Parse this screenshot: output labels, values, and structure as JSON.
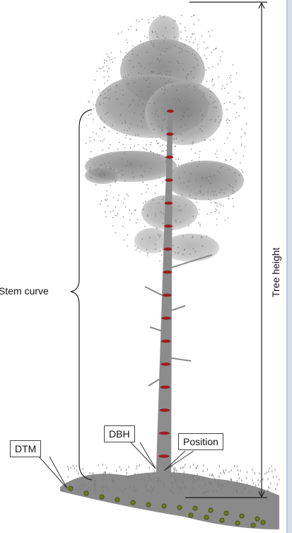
{
  "labels": {
    "stem_curve": "Stem curve",
    "tree_height": "Tree height",
    "dtm": "DTM",
    "dbh": "DBH",
    "position": "Position"
  },
  "colors": {
    "point_cloud": "#8a8a8a",
    "stem_markers": "#9b1c1c",
    "ground_markers": "#6b7a1e",
    "annotation_lines": "#222222"
  }
}
